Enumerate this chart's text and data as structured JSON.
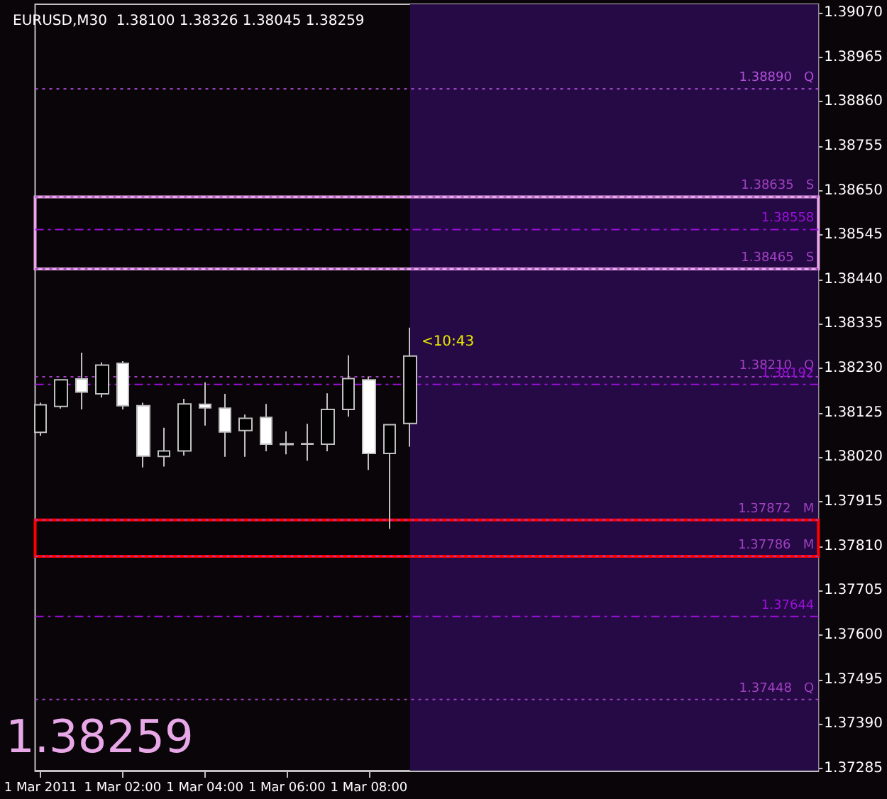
{
  "chart_data": {
    "type": "candlestick",
    "title": "EURUSD,M30  1.38100 1.38326 1.38045 1.38259",
    "x": [
      "2011-03-01T00:00",
      "2011-03-01T00:30",
      "2011-03-01T01:00",
      "2011-03-01T01:30",
      "2011-03-01T02:00",
      "2011-03-01T02:30",
      "2011-03-01T03:00",
      "2011-03-01T03:30",
      "2011-03-01T04:00",
      "2011-03-01T04:30",
      "2011-03-01T05:00",
      "2011-03-01T05:30",
      "2011-03-01T06:00",
      "2011-03-01T06:30",
      "2011-03-01T07:00",
      "2011-03-01T07:30",
      "2011-03-01T08:00",
      "2011-03-01T08:30",
      "2011-03-01T09:00"
    ],
    "ohlc": [
      [
        1.38079,
        1.38149,
        1.38071,
        1.38144
      ],
      [
        1.3814,
        1.38203,
        1.38135,
        1.38203
      ],
      [
        1.38205,
        1.38267,
        1.38133,
        1.38174
      ],
      [
        1.3817,
        1.38244,
        1.38161,
        1.38238
      ],
      [
        1.38242,
        1.38247,
        1.38133,
        1.38142
      ],
      [
        1.38142,
        1.38149,
        1.37996,
        1.38023
      ],
      [
        1.38022,
        1.3809,
        1.37998,
        1.38035
      ],
      [
        1.38035,
        1.38158,
        1.38024,
        1.38146
      ],
      [
        1.38145,
        1.38197,
        1.38095,
        1.38137
      ],
      [
        1.38136,
        1.3817,
        1.38021,
        1.3808
      ],
      [
        1.38083,
        1.38121,
        1.38021,
        1.38112
      ],
      [
        1.38114,
        1.38146,
        1.38034,
        1.38051
      ],
      [
        1.38052,
        1.38081,
        1.38027,
        1.3805
      ],
      [
        1.38051,
        1.38099,
        1.38012,
        1.38052
      ],
      [
        1.38051,
        1.38171,
        1.38034,
        1.38133
      ],
      [
        1.38133,
        1.38261,
        1.38116,
        1.38206
      ],
      [
        1.38203,
        1.38211,
        1.3799,
        1.38029
      ],
      [
        1.38029,
        1.38097,
        1.37851,
        1.38097
      ],
      [
        1.381,
        1.38326,
        1.38045,
        1.38259
      ]
    ],
    "xlim": [
      "2011-02-28T23:52",
      "2011-03-01T18:57"
    ],
    "xticks": [
      {
        "value": "2011-03-01T00:00",
        "label": "1 Mar 2011"
      },
      {
        "value": "2011-03-01T02:00",
        "label": "1 Mar 02:00"
      },
      {
        "value": "2011-03-01T04:00",
        "label": "1 Mar 04:00"
      },
      {
        "value": "2011-03-01T06:00",
        "label": "1 Mar 06:00"
      },
      {
        "value": "2011-03-01T08:00",
        "label": "1 Mar 08:00"
      }
    ],
    "ylim": [
      1.3728,
      1.3909
    ],
    "yticks": [
      {
        "value": 1.3907,
        "label": "1.39070"
      },
      {
        "value": 1.38965,
        "label": "1.38965"
      },
      {
        "value": 1.3886,
        "label": "1.38860"
      },
      {
        "value": 1.38755,
        "label": "1.38755"
      },
      {
        "value": 1.3865,
        "label": "1.38650"
      },
      {
        "value": 1.38545,
        "label": "1.38545"
      },
      {
        "value": 1.3844,
        "label": "1.38440"
      },
      {
        "value": 1.38335,
        "label": "1.38335"
      },
      {
        "value": 1.3823,
        "label": "1.38230"
      },
      {
        "value": 1.38125,
        "label": "1.38125"
      },
      {
        "value": 1.3802,
        "label": "1.38020"
      },
      {
        "value": 1.37915,
        "label": "1.37915"
      },
      {
        "value": 1.3781,
        "label": "1.37810"
      },
      {
        "value": 1.37705,
        "label": "1.37705"
      },
      {
        "value": 1.376,
        "label": "1.37600"
      },
      {
        "value": 1.37495,
        "label": "1.37495"
      },
      {
        "value": 1.3739,
        "label": "1.37390"
      },
      {
        "value": 1.37285,
        "label": "1.37285"
      }
    ],
    "grid": false,
    "ref_lines": [
      {
        "axis": "y",
        "value": 1.3889,
        "label": "1.38890   Q",
        "color": "#b050d8",
        "line_style": "dotted"
      },
      {
        "axis": "y",
        "value": 1.38635,
        "label": "1.38635   S",
        "color": "#a040c0",
        "line_style": "dotted"
      },
      {
        "axis": "y",
        "value": 1.38558,
        "label": "1.38558",
        "color": "#9a10d8",
        "line_style": "dashed"
      },
      {
        "axis": "y",
        "value": 1.38465,
        "label": "1.38465   S",
        "color": "#a040c0",
        "line_style": "dotted"
      },
      {
        "axis": "y",
        "value": 1.3821,
        "label": "1.38210   Q",
        "color": "#a040c0",
        "line_style": "dotted"
      },
      {
        "axis": "y",
        "value": 1.38192,
        "label": "1.38192",
        "color": "#9a10d8",
        "line_style": "dashed"
      },
      {
        "axis": "y",
        "value": 1.37872,
        "label": "1.37872   M",
        "color": "#a040c0",
        "line_style": "dotted"
      },
      {
        "axis": "y",
        "value": 1.37786,
        "label": "1.37786   M",
        "color": "#a040c0",
        "line_style": "dotted"
      },
      {
        "axis": "y",
        "value": 1.37644,
        "label": "1.37644",
        "color": "#9a10d8",
        "line_style": "dashed"
      },
      {
        "axis": "y",
        "value": 1.37448,
        "label": "1.37448   Q",
        "color": "#a040c0",
        "line_style": "dotted"
      }
    ],
    "bands": [
      {
        "axis": "x",
        "from": "2011-03-01T09:00",
        "to": "2011-03-01T18:57",
        "color": "#250a45"
      },
      {
        "axis": "y",
        "from": 1.38465,
        "to": 1.38635,
        "color": "#e8a8e8"
      },
      {
        "axis": "y",
        "from": 1.37786,
        "to": 1.37872,
        "color": "#ff0000"
      }
    ],
    "annotations": [
      {
        "text": "<10:43",
        "x": "2011-03-01T09:00",
        "y": 1.38292
      },
      "1.38259"
    ]
  }
}
